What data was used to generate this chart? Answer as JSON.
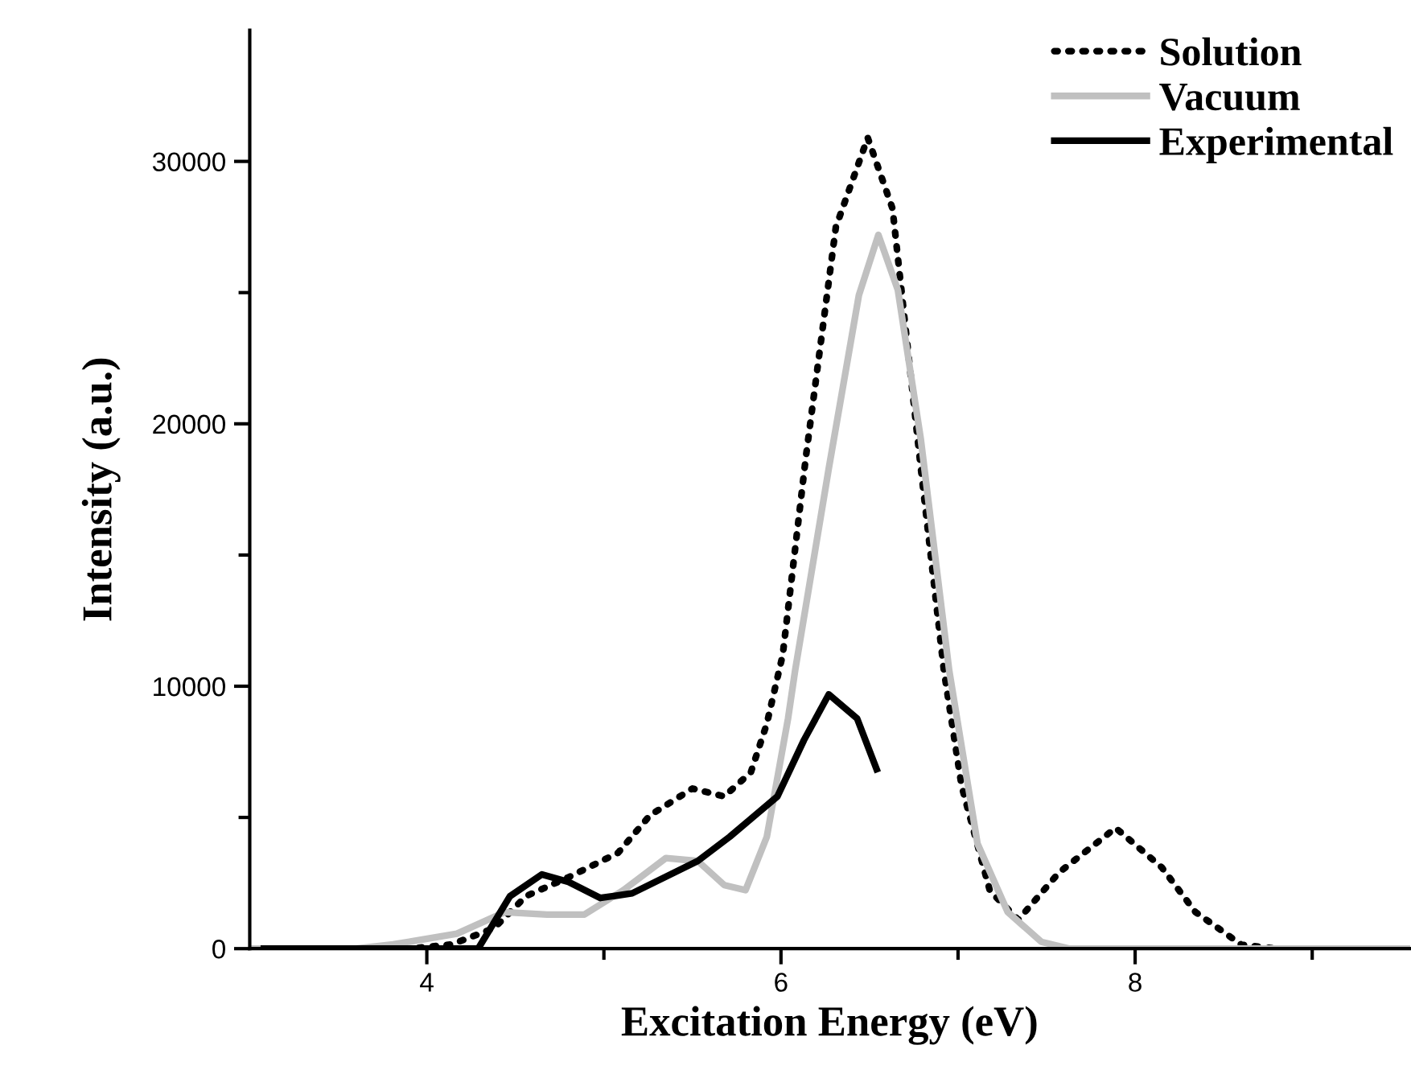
{
  "chart_data": {
    "type": "line",
    "xlabel": "Excitation Energy (eV)",
    "ylabel": "Intensity (a.u.)",
    "xlim": [
      3.0,
      9.55
    ],
    "ylim": [
      0,
      35000
    ],
    "xticks": [
      4,
      {
        "value": 5,
        "label": null
      },
      6,
      {
        "value": 7,
        "label": null
      },
      8,
      {
        "value": 9,
        "label": null
      }
    ],
    "yticks": [
      0,
      {
        "value": 5000,
        "label": null
      },
      10000,
      {
        "value": 15000,
        "label": null
      },
      20000,
      {
        "value": 25000,
        "label": null
      },
      30000
    ],
    "grid": false,
    "legend": "top right",
    "series": [
      {
        "name": "Solution",
        "color": "#000000",
        "line_style": "dotted",
        "x": [
          3.0,
          3.9,
          4.14,
          4.38,
          4.56,
          4.8,
          5.08,
          5.26,
          5.5,
          5.68,
          5.83,
          5.92,
          6.01,
          6.14,
          6.31,
          6.49,
          6.63,
          6.79,
          6.92,
          7.02,
          7.18,
          7.34,
          7.57,
          7.89,
          8.15,
          8.34,
          8.6,
          8.8,
          9.55
        ],
        "values": [
          0,
          0,
          160,
          780,
          2000,
          2720,
          3650,
          5080,
          6100,
          5800,
          6720,
          8570,
          11200,
          18700,
          27500,
          30900,
          28200,
          18300,
          10600,
          6200,
          2200,
          1100,
          2900,
          4600,
          3100,
          1400,
          150,
          0,
          0
        ]
      },
      {
        "name": "Vacuum",
        "color": "#c0c0c0",
        "line_style": "solid",
        "x": [
          3.0,
          3.6,
          3.81,
          4.17,
          4.44,
          4.68,
          4.89,
          5.11,
          5.35,
          5.53,
          5.68,
          5.8,
          5.92,
          6.04,
          6.08,
          6.27,
          6.44,
          6.55,
          6.66,
          6.79,
          6.95,
          7.11,
          7.28,
          7.47,
          7.63,
          9.55
        ],
        "values": [
          0,
          0,
          160,
          570,
          1390,
          1300,
          1300,
          2230,
          3450,
          3340,
          2420,
          2230,
          4260,
          8770,
          10600,
          18300,
          24900,
          27200,
          25100,
          19400,
          10600,
          4000,
          1400,
          260,
          0,
          0
        ]
      },
      {
        "name": "Experimental",
        "color": "#000000",
        "line_style": "solid",
        "x": [
          3.08,
          4.29,
          4.47,
          4.65,
          4.8,
          4.98,
          5.16,
          5.53,
          5.71,
          5.98,
          6.13,
          6.27,
          6.43,
          6.54
        ],
        "values": [
          0,
          0,
          2000,
          2830,
          2540,
          1930,
          2110,
          3340,
          4260,
          5800,
          7950,
          9690,
          8770,
          6840
        ]
      }
    ]
  }
}
